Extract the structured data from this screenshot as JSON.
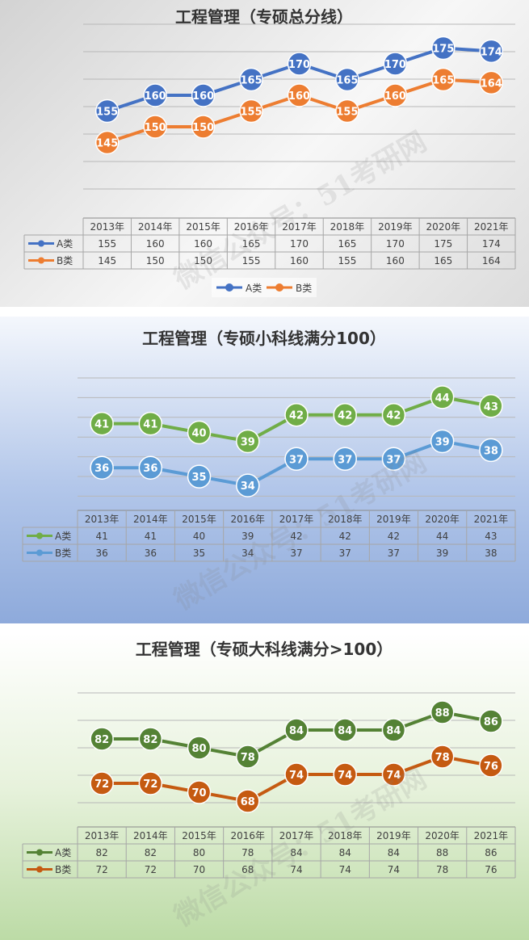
{
  "watermark": "微信公众号：51考研网",
  "chart_data": [
    {
      "type": "line",
      "title": "工程管理（专硕总分线）",
      "categories": [
        "2013年",
        "2014年",
        "2015年",
        "2016年",
        "2017年",
        "2018年",
        "2019年",
        "2020年",
        "2021年"
      ],
      "series": [
        {
          "name": "A类",
          "values": [
            155,
            160,
            160,
            165,
            170,
            165,
            170,
            175,
            174
          ],
          "color": "#4472c4"
        },
        {
          "name": "B类",
          "values": [
            145,
            150,
            150,
            155,
            160,
            155,
            160,
            165,
            164
          ],
          "color": "#ed7d31"
        }
      ],
      "ylim": [
        130,
        180
      ],
      "legend": "bottom",
      "grid": true
    },
    {
      "type": "line",
      "title": "工程管理（专硕小科线满分100）",
      "categories": [
        "2013年",
        "2014年",
        "2015年",
        "2016年",
        "2017年",
        "2018年",
        "2019年",
        "2020年",
        "2021年"
      ],
      "series": [
        {
          "name": "A类",
          "values": [
            41,
            41,
            40,
            39,
            42,
            42,
            42,
            44,
            43
          ],
          "color": "#70ad47"
        },
        {
          "name": "B类",
          "values": [
            36,
            36,
            35,
            34,
            37,
            37,
            37,
            39,
            38
          ],
          "color": "#5b9bd5"
        }
      ],
      "ylim": [
        33,
        46
      ],
      "grid": true
    },
    {
      "type": "line",
      "title": "工程管理（专硕大科线满分>100）",
      "categories": [
        "2013年",
        "2014年",
        "2015年",
        "2016年",
        "2017年",
        "2018年",
        "2019年",
        "2020年",
        "2021年"
      ],
      "series": [
        {
          "name": "A类",
          "values": [
            82,
            82,
            80,
            78,
            84,
            84,
            84,
            88,
            86
          ],
          "color": "#548235"
        },
        {
          "name": "B类",
          "values": [
            72,
            72,
            70,
            68,
            74,
            74,
            74,
            78,
            76
          ],
          "color": "#c55a11"
        }
      ],
      "ylim": [
        66,
        92
      ],
      "grid": true
    }
  ]
}
